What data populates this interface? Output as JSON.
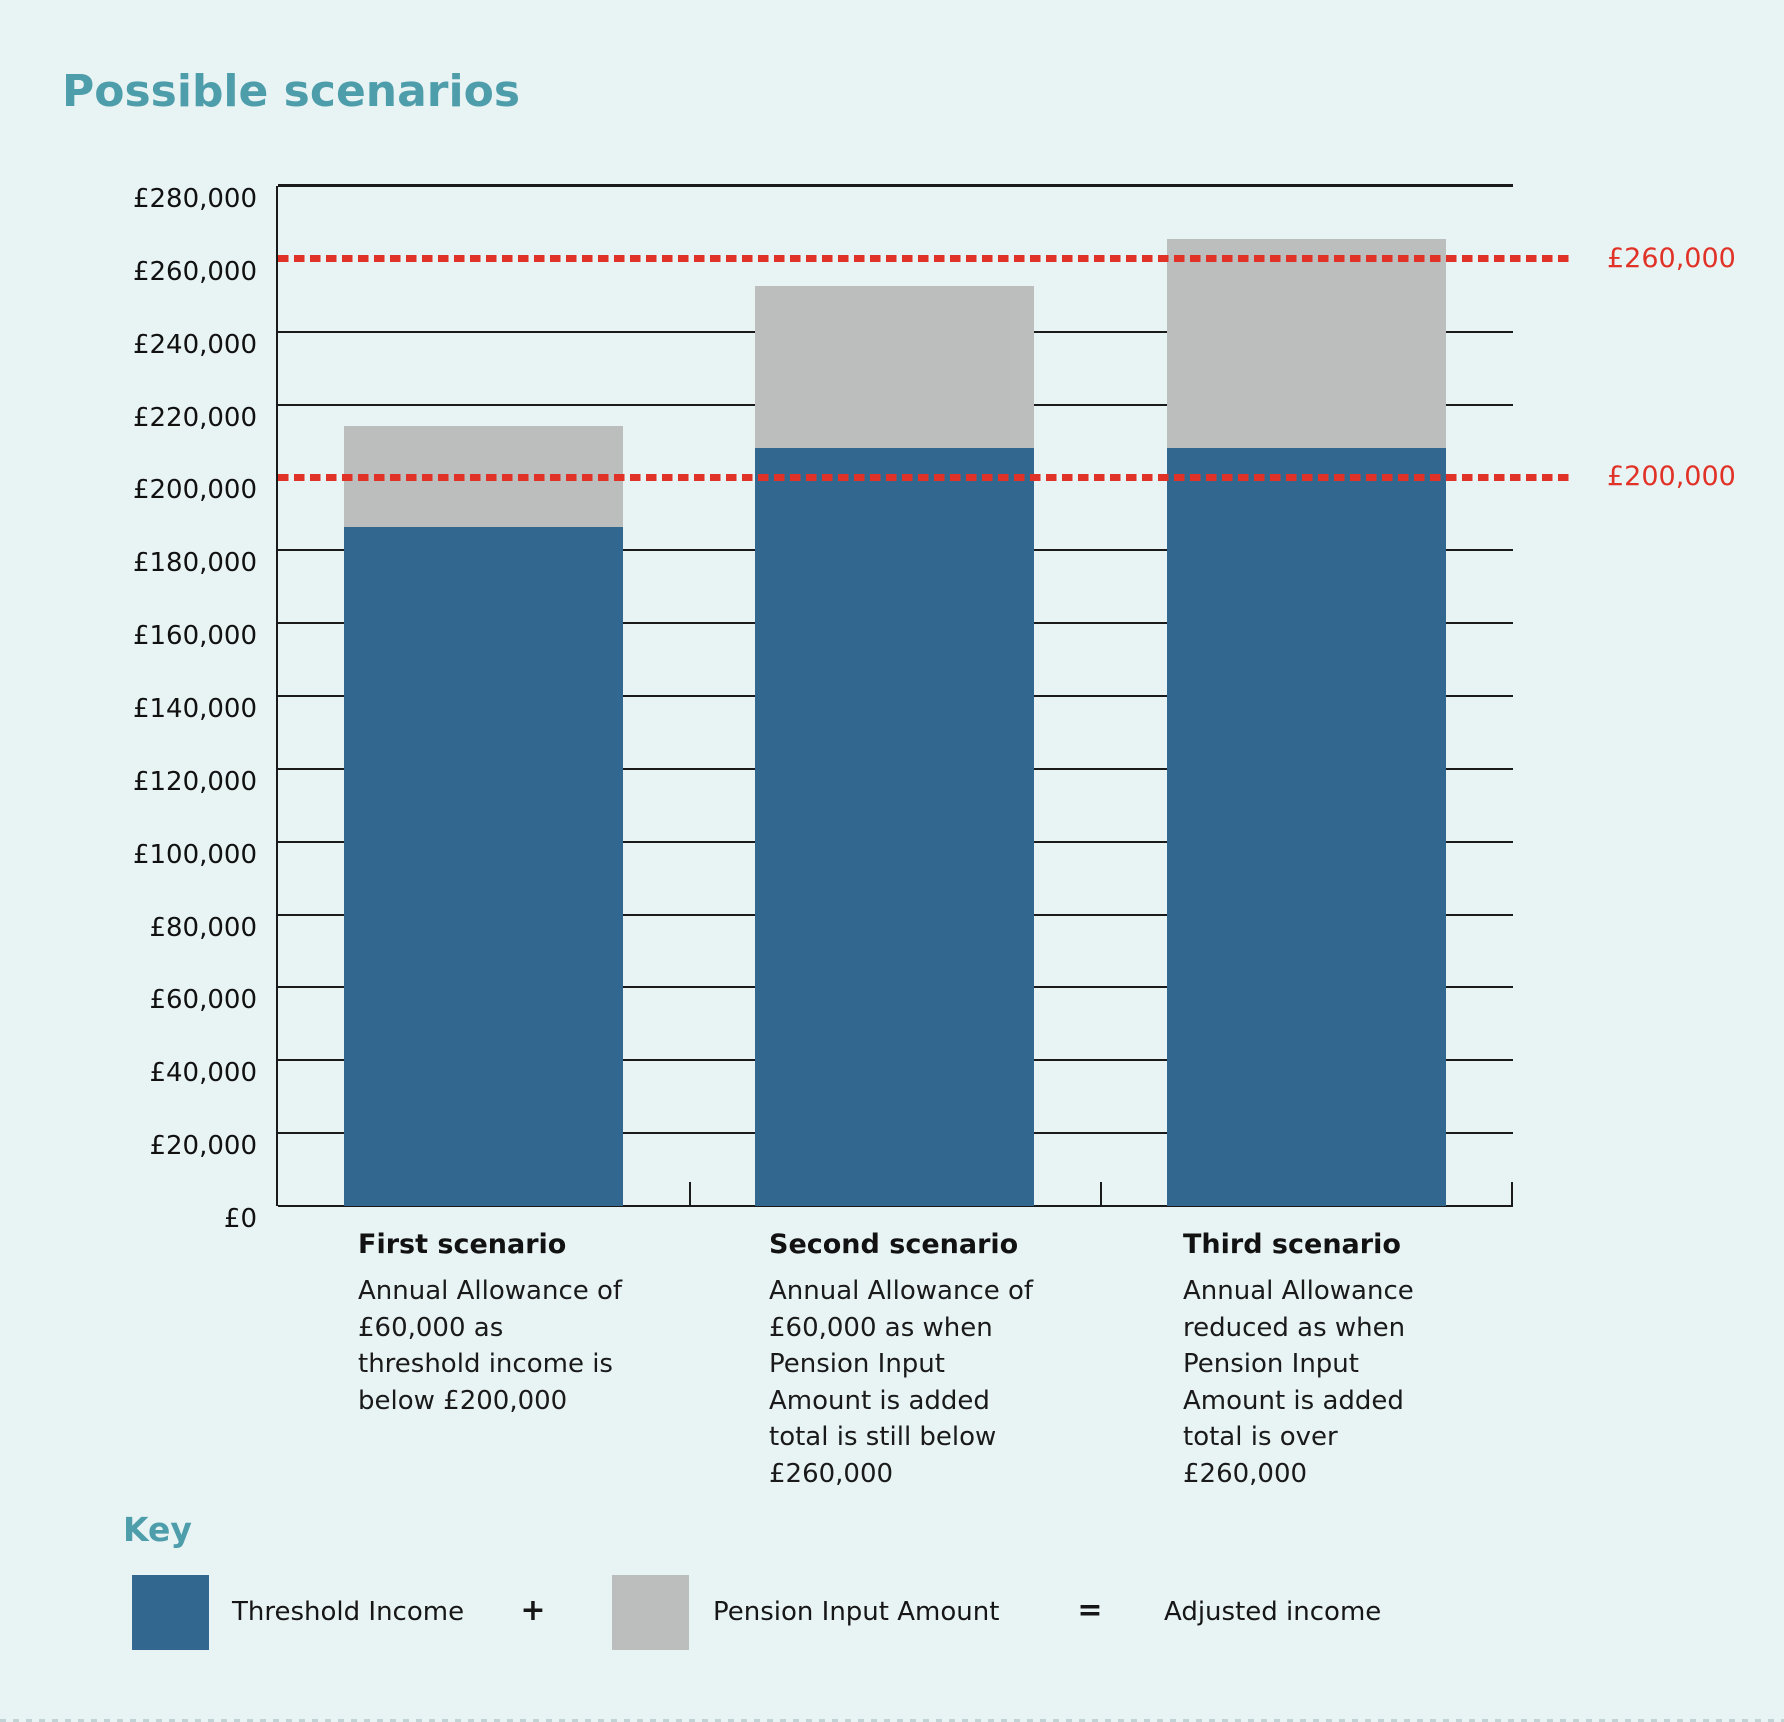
{
  "title": "Possible scenarios",
  "scenarios": [
    {
      "heading": "First scenario",
      "description": "Annual Allowance of\n£60,000 as\nthreshold income is\nbelow £200,000"
    },
    {
      "heading": "Second scenario",
      "description": "Annual Allowance of\n£60,000 as when\nPension Input\nAmount is added\ntotal is still below\n£260,000"
    },
    {
      "heading": "Third scenario",
      "description": "Annual Allowance\nreduced as when\nPension Input\nAmount is added\ntotal is over\n£260,000"
    }
  ],
  "key": {
    "heading": "Key",
    "threshold_label": "Threshold Income",
    "plus": "+",
    "pension_label": "Pension Input Amount",
    "equals": "=",
    "result_label": "Adjusted income"
  },
  "colors": {
    "background": "#e8f3f4",
    "threshold_blue": "#32688f",
    "pension_gray": "#bcbdbd",
    "reference_red": "#e13227",
    "heading_teal": "#4d9dab",
    "axis_black": "#1a1a1a"
  },
  "chart_data": {
    "type": "bar",
    "stacked": true,
    "title": "Possible scenarios",
    "categories": [
      "First scenario",
      "Second scenario",
      "Third scenario"
    ],
    "series": [
      {
        "name": "Threshold Income",
        "color": "#32688f",
        "values": [
          186500,
          208000,
          208000
        ]
      },
      {
        "name": "Pension Input Amount",
        "color": "#bcbdbd",
        "values": [
          27500,
          44500,
          57500
        ]
      }
    ],
    "adjusted_income_totals": [
      214000,
      252500,
      265500
    ],
    "ylim": [
      0,
      280000
    ],
    "ytick_step": 20000,
    "ytick_labels": [
      "£0",
      "£20,000",
      "£40,000",
      "£60,000",
      "£80,000",
      "£100,000",
      "£120,000",
      "£140,000",
      "£160,000",
      "£180,000",
      "£200,000",
      "£220,000",
      "£240,000",
      "£260,000",
      "£280,000"
    ],
    "grid": true,
    "legend_position": "bottom",
    "reference_lines": [
      {
        "value": 260000,
        "label": "£260,000",
        "color": "#e13227",
        "style": "dashed"
      },
      {
        "value": 200000,
        "label": "£200,000",
        "color": "#e13227",
        "style": "dashed"
      }
    ]
  }
}
